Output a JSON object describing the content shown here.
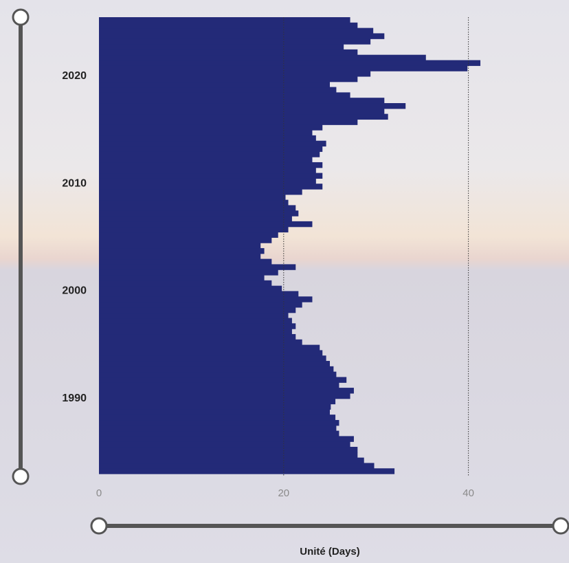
{
  "chart_data": {
    "type": "barh",
    "x_label": "Unité (Days)",
    "color": "#232a78",
    "x": [
      1983,
      1983.5,
      1984,
      1984.5,
      1985,
      1985.5,
      1986,
      1986.5,
      1987,
      1987.5,
      1988,
      1988.5,
      1989,
      1989.5,
      1990,
      1990.5,
      1991,
      1991.5,
      1992,
      1992.5,
      1993,
      1993.5,
      1994,
      1994.5,
      1995,
      1995.5,
      1996,
      1996.5,
      1997,
      1997.5,
      1998,
      1998.5,
      1999,
      1999.5,
      2000,
      2000.5,
      2001,
      2001.5,
      2002,
      2002.5,
      2003,
      2003.5,
      2004,
      2004.5,
      2005,
      2005.5,
      2006,
      2006.5,
      2007,
      2007.5,
      2008,
      2008.5,
      2009,
      2009.5,
      2010,
      2010.5,
      2011,
      2011.5,
      2012,
      2012.5,
      2013,
      2013.5,
      2014,
      2014.5,
      2015,
      2015.5,
      2016,
      2016.5,
      2017,
      2017.5,
      2018,
      2018.5,
      2019,
      2019.5,
      2020,
      2020.5,
      2021,
      2021.5,
      2022,
      2022.5,
      2023,
      2023.5,
      2024,
      2024.5,
      2025
    ],
    "values": [
      32,
      29.8,
      28.7,
      28,
      28,
      27.2,
      27.6,
      26,
      25.7,
      26,
      25.6,
      25,
      25.1,
      25.6,
      27.2,
      27.6,
      26,
      26.8,
      25.7,
      25.4,
      25,
      24.6,
      24.2,
      23.9,
      22,
      21.3,
      20.9,
      21.3,
      20.9,
      20.5,
      21.3,
      22,
      23.1,
      21.6,
      19.8,
      18.7,
      17.9,
      19.4,
      21.3,
      18.7,
      17.5,
      17.9,
      17.5,
      18.7,
      19.4,
      20.5,
      23.1,
      20.9,
      21.6,
      21.3,
      20.5,
      20.2,
      22,
      24.2,
      23.5,
      24.2,
      23.5,
      24.2,
      23.1,
      23.9,
      24.2,
      24.6,
      23.5,
      23.1,
      24.2,
      28,
      31.3,
      30.9,
      33.2,
      30.9,
      27.2,
      25.7,
      25,
      28,
      29.4,
      39.9,
      41.3,
      35.4,
      28,
      26.5,
      29.4,
      30.9,
      29.7,
      28,
      27.2
    ],
    "ylim": [
      1982.75,
      2025.5
    ],
    "yticks": [
      1990,
      2000,
      2010,
      2020
    ],
    "xlim": [
      0,
      50
    ],
    "xticks": [
      0,
      20,
      40
    ],
    "grid": true
  }
}
